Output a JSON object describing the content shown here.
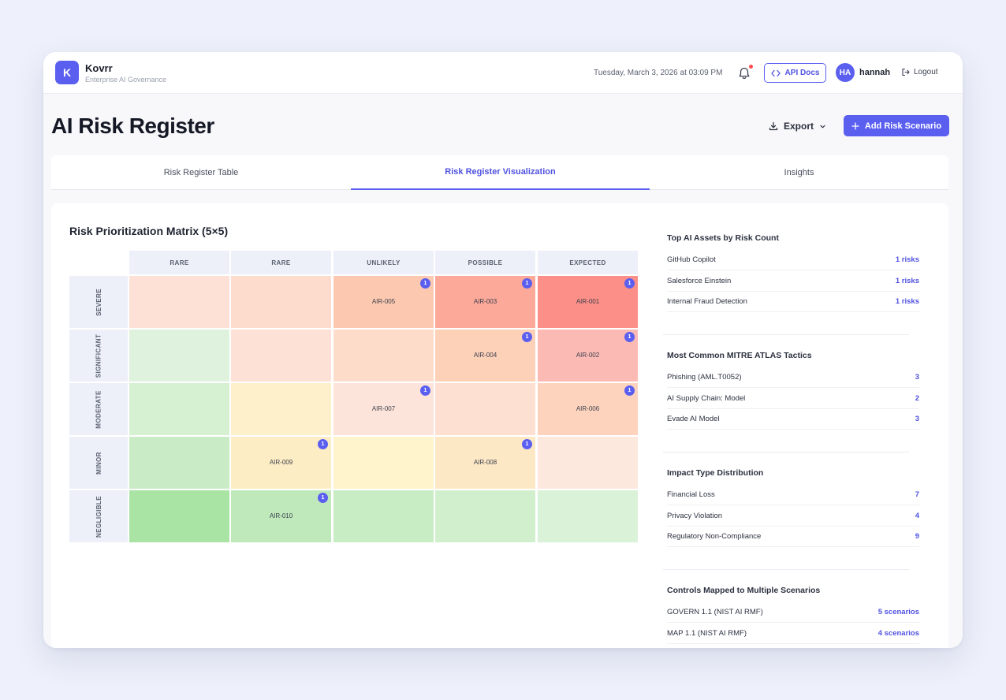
{
  "app": {
    "logo_letter": "K",
    "name": "Kovrr",
    "subtitle": "Enterprise AI Governance"
  },
  "header": {
    "datetime": "Tuesday, March 3, 2026 at 03:09 PM",
    "api_docs_label": "API Docs",
    "avatar_initials": "HA",
    "username": "hannah",
    "logout_label": "Logout"
  },
  "page": {
    "title": "AI Risk Register",
    "export_label": "Export",
    "add_label": "Add Risk Scenario"
  },
  "tabs": [
    {
      "label": "Risk Register Table"
    },
    {
      "label": "Risk Register Visualization",
      "active": true
    },
    {
      "label": "Insights"
    }
  ],
  "matrix": {
    "title": "Risk Prioritization Matrix (5×5)",
    "columns": [
      "RARE",
      "RARE",
      "UNLIKELY",
      "POSSIBLE",
      "EXPECTED"
    ],
    "rows": [
      {
        "label": "SEVERE",
        "cells": [
          {
            "color": "#fde0d6"
          },
          {
            "color": "#fddccd"
          },
          {
            "color": "#fcc9b0",
            "id": "AIR-005",
            "count": "1"
          },
          {
            "color": "#fca99a",
            "id": "AIR-003",
            "count": "1"
          },
          {
            "color": "#fc8f87",
            "id": "AIR-001",
            "count": "1"
          }
        ]
      },
      {
        "label": "SIGNIFICANT",
        "cells": [
          {
            "color": "#dff2dd"
          },
          {
            "color": "#fde0d6"
          },
          {
            "color": "#fdddc9"
          },
          {
            "color": "#fdd0b8",
            "id": "AIR-004",
            "count": "1"
          },
          {
            "color": "#fcbab4",
            "id": "AIR-002",
            "count": "1"
          }
        ]
      },
      {
        "label": "MODERATE",
        "cells": [
          {
            "color": "#d6f0d2"
          },
          {
            "color": "#fff0cc"
          },
          {
            "color": "#fde4da",
            "id": "AIR-007",
            "count": "1"
          },
          {
            "color": "#fde0d2"
          },
          {
            "color": "#fdd3bd",
            "id": "AIR-006",
            "count": "1"
          }
        ]
      },
      {
        "label": "MINOR",
        "cells": [
          {
            "color": "#c9ecc6"
          },
          {
            "color": "#fdedc5",
            "id": "AIR-009",
            "count": "1"
          },
          {
            "color": "#fff4cc"
          },
          {
            "color": "#fde8c6",
            "id": "AIR-008",
            "count": "1"
          },
          {
            "color": "#fde8de"
          }
        ]
      },
      {
        "label": "NEGLIGIBLE",
        "cells": [
          {
            "color": "#a9e4a4"
          },
          {
            "color": "#bfe9bb",
            "id": "AIR-010",
            "count": "1"
          },
          {
            "color": "#c8ecc4"
          },
          {
            "color": "#d1efcd"
          },
          {
            "color": "#daf2d7"
          }
        ]
      }
    ]
  },
  "side": [
    {
      "title": "Top AI Assets by Risk Count",
      "items": [
        {
          "name": "GitHub Copilot",
          "value": "1 risks"
        },
        {
          "name": "Salesforce Einstein",
          "value": "1 risks"
        },
        {
          "name": "Internal Fraud Detection",
          "value": "1 risks"
        }
      ]
    },
    {
      "title": "Most Common MITRE ATLAS Tactics",
      "items": [
        {
          "name": "Phishing (AML.T0052)",
          "value": "3"
        },
        {
          "name": "AI Supply Chain: Model",
          "value": "2"
        },
        {
          "name": "Evade AI Model",
          "value": "3"
        }
      ]
    },
    {
      "title": "Impact Type Distribution",
      "items": [
        {
          "name": "Financial Loss",
          "value": "7"
        },
        {
          "name": "Privacy Violation",
          "value": "4"
        },
        {
          "name": "Regulatory Non-Compliance",
          "value": "9"
        }
      ]
    },
    {
      "title": "Controls Mapped to Multiple Scenarios",
      "items": [
        {
          "name": "GOVERN 1.1 (NIST AI RMF)",
          "value": "5 scenarios"
        },
        {
          "name": "MAP 1.1 (NIST AI RMF)",
          "value": "4 scenarios"
        }
      ]
    }
  ]
}
